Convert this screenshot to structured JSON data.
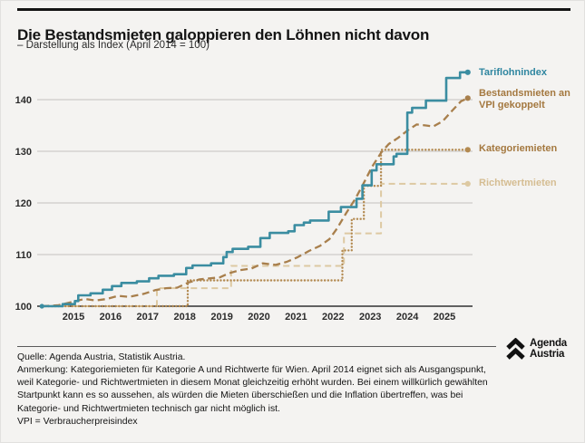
{
  "chart_data": {
    "type": "line",
    "title": "Die Bestandsmieten galoppieren den Löhnen nicht davon",
    "subtitle": "– Darstellung als Index (April 2014 = 100)",
    "legend_position": "right",
    "grid": true,
    "x_axis": {
      "range": [
        2014.1,
        2025.9
      ],
      "ticks": [
        2015,
        2016,
        2017,
        2018,
        2019,
        2020,
        2021,
        2022,
        2023,
        2024,
        2025
      ]
    },
    "y_axis": {
      "range": [
        100,
        146.5
      ],
      "ticks": [
        100,
        110,
        120,
        130,
        140
      ]
    },
    "series": [
      {
        "name": "Tariflohnindex",
        "color": "#3b8da1",
        "label_color": "#2f86a0",
        "style": "solid",
        "step": true,
        "start_marker": true,
        "points": [
          [
            2014.15,
            100
          ],
          [
            2014.71,
            100.4
          ],
          [
            2015.04,
            101.0
          ],
          [
            2015.13,
            102.1
          ],
          [
            2015.46,
            102.5
          ],
          [
            2015.79,
            103.2
          ],
          [
            2016.04,
            103.9
          ],
          [
            2016.29,
            104.5
          ],
          [
            2016.71,
            104.8
          ],
          [
            2017.04,
            105.4
          ],
          [
            2017.29,
            105.9
          ],
          [
            2017.71,
            106.2
          ],
          [
            2018.04,
            107.4
          ],
          [
            2018.21,
            107.9
          ],
          [
            2018.71,
            108.3
          ],
          [
            2019.04,
            109.5
          ],
          [
            2019.13,
            110.5
          ],
          [
            2019.29,
            111.1
          ],
          [
            2019.71,
            111.5
          ],
          [
            2020.04,
            113.2
          ],
          [
            2020.29,
            114.2
          ],
          [
            2020.79,
            114.5
          ],
          [
            2020.96,
            115.7
          ],
          [
            2021.21,
            116.2
          ],
          [
            2021.38,
            116.6
          ],
          [
            2021.88,
            118.3
          ],
          [
            2022.21,
            119.2
          ],
          [
            2022.63,
            120.8
          ],
          [
            2022.79,
            123.4
          ],
          [
            2023.04,
            126.3
          ],
          [
            2023.17,
            127.5
          ],
          [
            2023.63,
            129.0
          ],
          [
            2023.71,
            129.5
          ],
          [
            2024.0,
            137.5
          ],
          [
            2024.13,
            138.4
          ],
          [
            2024.5,
            139.8
          ],
          [
            2025.05,
            144.2
          ],
          [
            2025.42,
            145.3
          ],
          [
            2025.63,
            145.3
          ]
        ]
      },
      {
        "name": "Bestandsmieten an VPI gekoppelt",
        "color": "#a87f4c",
        "label_color": "#a4783f",
        "style": "dashed",
        "step": false,
        "points": [
          [
            2014.15,
            100
          ],
          [
            2014.6,
            100.2
          ],
          [
            2015.0,
            100.9
          ],
          [
            2015.3,
            101.4
          ],
          [
            2015.6,
            101.1
          ],
          [
            2015.9,
            101.4
          ],
          [
            2016.2,
            102.0
          ],
          [
            2016.5,
            101.8
          ],
          [
            2016.9,
            102.4
          ],
          [
            2017.2,
            103.1
          ],
          [
            2017.5,
            103.5
          ],
          [
            2017.8,
            103.6
          ],
          [
            2018.1,
            104.6
          ],
          [
            2018.4,
            105.2
          ],
          [
            2018.7,
            105.4
          ],
          [
            2018.95,
            105.6
          ],
          [
            2019.2,
            106.4
          ],
          [
            2019.5,
            107.0
          ],
          [
            2019.8,
            107.3
          ],
          [
            2020.1,
            108.3
          ],
          [
            2020.45,
            108.0
          ],
          [
            2020.75,
            108.6
          ],
          [
            2021.05,
            109.5
          ],
          [
            2021.35,
            110.7
          ],
          [
            2021.65,
            111.7
          ],
          [
            2021.9,
            113.0
          ],
          [
            2022.1,
            115.0
          ],
          [
            2022.35,
            118.0
          ],
          [
            2022.6,
            120.8
          ],
          [
            2022.85,
            124.2
          ],
          [
            2023.05,
            127.0
          ],
          [
            2023.3,
            129.8
          ],
          [
            2023.5,
            131.4
          ],
          [
            2023.75,
            132.6
          ],
          [
            2024.0,
            134.0
          ],
          [
            2024.25,
            135.2
          ],
          [
            2024.5,
            135.0
          ],
          [
            2024.7,
            134.8
          ],
          [
            2024.95,
            135.8
          ],
          [
            2025.2,
            137.8
          ],
          [
            2025.45,
            139.7
          ],
          [
            2025.63,
            140.3
          ]
        ]
      },
      {
        "name": "Kategoriemieten",
        "color": "#b38a51",
        "label_color": "#a4783f",
        "style": "dotted",
        "step": true,
        "points": [
          [
            2014.15,
            100
          ],
          [
            2018.08,
            105.0
          ],
          [
            2022.25,
            110.8
          ],
          [
            2022.5,
            116.9
          ],
          [
            2022.83,
            123.3
          ],
          [
            2023.29,
            130.3
          ],
          [
            2025.63,
            130.3
          ]
        ]
      },
      {
        "name": "Richtwertmieten",
        "color": "#ddc9a2",
        "label_color": "#d5bd92",
        "style": "dashed-light",
        "step": true,
        "points": [
          [
            2014.15,
            100
          ],
          [
            2017.25,
            103.5
          ],
          [
            2019.25,
            107.8
          ],
          [
            2022.29,
            114.1
          ],
          [
            2023.29,
            123.7
          ],
          [
            2025.63,
            123.7
          ]
        ]
      }
    ]
  },
  "footer": {
    "source": "Quelle: Agenda Austria, Statistik Austria.",
    "annotation": "Anmerkung: Kategoriemieten für Kategorie A und Richtwerte für Wien. April 2014 eignet sich als Ausgangspunkt, weil Kategorie- und Richtwertmieten in diesem Monat gleichzeitig erhöht wurden. Bei einem willkürlich gewählten Startpunkt kann es so aussehen, als würden die Mieten überschießen und die Inflation übertreffen, was bei Kategorie- und Richtwertmieten technisch gar nicht möglich ist.",
    "vpi_note": "VPI = Verbraucherpreisindex",
    "logo_line1": "Agenda",
    "logo_line2": "Austria"
  }
}
